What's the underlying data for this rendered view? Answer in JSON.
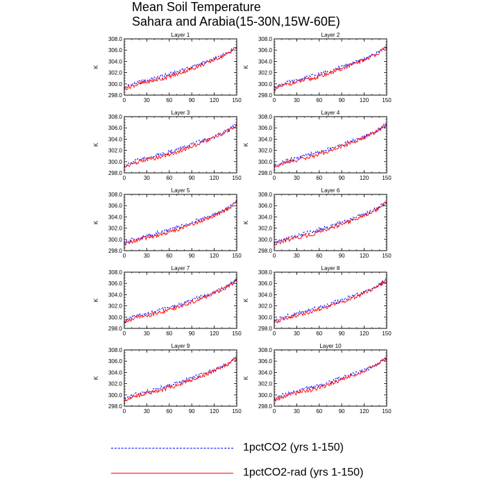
{
  "title": {
    "line1": "Mean Soil Temperature",
    "line2": "Sahara and Arabia(15-30N,15W-60E)"
  },
  "legend": [
    {
      "label": "1pctCO2 (yrs 1-150)",
      "color": "#0000ff",
      "style": "dashed"
    },
    {
      "label": "1pctCO2-rad (yrs 1-150)",
      "color": "#ff0000",
      "style": "solid"
    }
  ],
  "chart_data": {
    "type": "line",
    "layout": "5x2 panel grid",
    "ylabel": "K",
    "xlim": [
      0,
      150
    ],
    "ylim": [
      298.0,
      308.0
    ],
    "xticks": [
      0,
      30,
      60,
      90,
      120,
      150
    ],
    "yticks": [
      "298.0",
      "300.0",
      "302.0",
      "304.0",
      "306.0",
      "308.0"
    ],
    "x": [
      0,
      10,
      20,
      30,
      40,
      50,
      60,
      70,
      80,
      90,
      100,
      110,
      120,
      130,
      140,
      150
    ],
    "panels": [
      {
        "title": "Layer 1",
        "series": [
          {
            "name": "1pctCO2 (yrs 1-150)",
            "values": [
              299.3,
              299.9,
              300.3,
              300.6,
              301.0,
              301.4,
              301.7,
              302.1,
              302.6,
              303.0,
              303.5,
              303.9,
              304.4,
              305.0,
              305.7,
              306.7
            ]
          },
          {
            "name": "1pctCO2-rad (yrs 1-150)",
            "values": [
              299.1,
              299.6,
              300.0,
              300.3,
              300.6,
              300.9,
              301.3,
              301.7,
              302.2,
              302.7,
              303.2,
              303.7,
              304.3,
              304.9,
              305.6,
              306.6
            ]
          }
        ]
      },
      {
        "title": "Layer 2",
        "series": [
          {
            "name": "1pctCO2 (yrs 1-150)",
            "values": [
              299.3,
              299.9,
              300.3,
              300.6,
              301.0,
              301.4,
              301.7,
              302.1,
              302.6,
              303.0,
              303.5,
              303.9,
              304.4,
              305.0,
              305.7,
              306.7
            ]
          },
          {
            "name": "1pctCO2-rad (yrs 1-150)",
            "values": [
              299.1,
              299.6,
              300.0,
              300.3,
              300.6,
              300.9,
              301.3,
              301.7,
              302.2,
              302.7,
              303.2,
              303.7,
              304.3,
              304.9,
              305.6,
              306.6
            ]
          }
        ]
      },
      {
        "title": "Layer 3",
        "series": [
          {
            "name": "1pctCO2 (yrs 1-150)",
            "values": [
              299.3,
              299.9,
              300.3,
              300.6,
              301.0,
              301.4,
              301.7,
              302.1,
              302.6,
              303.0,
              303.5,
              303.9,
              304.4,
              305.0,
              305.7,
              306.7
            ]
          },
          {
            "name": "1pctCO2-rad (yrs 1-150)",
            "values": [
              299.1,
              299.6,
              300.0,
              300.3,
              300.6,
              300.9,
              301.3,
              301.7,
              302.2,
              302.7,
              303.2,
              303.7,
              304.3,
              304.9,
              305.6,
              306.6
            ]
          }
        ]
      },
      {
        "title": "Layer 4",
        "series": [
          {
            "name": "1pctCO2 (yrs 1-150)",
            "values": [
              299.3,
              299.9,
              300.3,
              300.6,
              301.0,
              301.4,
              301.7,
              302.1,
              302.6,
              303.0,
              303.5,
              303.9,
              304.4,
              305.0,
              305.7,
              306.7
            ]
          },
          {
            "name": "1pctCO2-rad (yrs 1-150)",
            "values": [
              299.1,
              299.6,
              300.0,
              300.3,
              300.6,
              300.9,
              301.3,
              301.7,
              302.2,
              302.7,
              303.2,
              303.7,
              304.3,
              304.9,
              305.6,
              306.6
            ]
          }
        ]
      },
      {
        "title": "Layer 5",
        "series": [
          {
            "name": "1pctCO2 (yrs 1-150)",
            "values": [
              299.3,
              299.9,
              300.3,
              300.6,
              301.0,
              301.4,
              301.7,
              302.1,
              302.6,
              303.0,
              303.5,
              303.9,
              304.4,
              305.0,
              305.7,
              306.7
            ]
          },
          {
            "name": "1pctCO2-rad (yrs 1-150)",
            "values": [
              299.1,
              299.6,
              300.0,
              300.3,
              300.6,
              300.9,
              301.3,
              301.7,
              302.2,
              302.7,
              303.2,
              303.7,
              304.3,
              304.9,
              305.6,
              306.6
            ]
          }
        ]
      },
      {
        "title": "Layer 6",
        "series": [
          {
            "name": "1pctCO2 (yrs 1-150)",
            "values": [
              299.3,
              299.9,
              300.3,
              300.6,
              301.0,
              301.4,
              301.7,
              302.1,
              302.6,
              303.0,
              303.5,
              303.9,
              304.4,
              305.0,
              305.7,
              306.7
            ]
          },
          {
            "name": "1pctCO2-rad (yrs 1-150)",
            "values": [
              299.1,
              299.6,
              300.0,
              300.3,
              300.6,
              300.9,
              301.3,
              301.7,
              302.2,
              302.7,
              303.2,
              303.7,
              304.3,
              304.9,
              305.6,
              306.6
            ]
          }
        ]
      },
      {
        "title": "Layer 7",
        "series": [
          {
            "name": "1pctCO2 (yrs 1-150)",
            "values": [
              299.3,
              299.9,
              300.3,
              300.6,
              301.0,
              301.4,
              301.7,
              302.1,
              302.6,
              303.0,
              303.5,
              303.9,
              304.4,
              305.0,
              305.7,
              306.7
            ]
          },
          {
            "name": "1pctCO2-rad (yrs 1-150)",
            "values": [
              299.1,
              299.6,
              300.0,
              300.3,
              300.6,
              300.9,
              301.3,
              301.7,
              302.2,
              302.7,
              303.2,
              303.7,
              304.3,
              304.9,
              305.6,
              306.6
            ]
          }
        ]
      },
      {
        "title": "Layer 8",
        "series": [
          {
            "name": "1pctCO2 (yrs 1-150)",
            "values": [
              299.3,
              299.9,
              300.3,
              300.6,
              301.0,
              301.4,
              301.7,
              302.1,
              302.6,
              303.0,
              303.5,
              303.9,
              304.4,
              305.0,
              305.7,
              306.7
            ]
          },
          {
            "name": "1pctCO2-rad (yrs 1-150)",
            "values": [
              299.1,
              299.6,
              300.0,
              300.3,
              300.6,
              300.9,
              301.3,
              301.7,
              302.2,
              302.7,
              303.2,
              303.7,
              304.3,
              304.9,
              305.6,
              306.6
            ]
          }
        ]
      },
      {
        "title": "Layer 9",
        "series": [
          {
            "name": "1pctCO2 (yrs 1-150)",
            "values": [
              299.3,
              299.9,
              300.3,
              300.6,
              301.0,
              301.4,
              301.7,
              302.1,
              302.6,
              303.0,
              303.5,
              303.9,
              304.4,
              305.0,
              305.7,
              306.7
            ]
          },
          {
            "name": "1pctCO2-rad (yrs 1-150)",
            "values": [
              299.1,
              299.6,
              300.0,
              300.3,
              300.6,
              300.9,
              301.3,
              301.7,
              302.2,
              302.7,
              303.2,
              303.7,
              304.3,
              304.9,
              305.6,
              306.6
            ]
          }
        ]
      },
      {
        "title": "Layer 10",
        "series": [
          {
            "name": "1pctCO2 (yrs 1-150)",
            "values": [
              299.3,
              299.9,
              300.3,
              300.6,
              301.0,
              301.4,
              301.7,
              302.1,
              302.6,
              303.0,
              303.5,
              303.9,
              304.4,
              305.0,
              305.7,
              306.7
            ]
          },
          {
            "name": "1pctCO2-rad (yrs 1-150)",
            "values": [
              299.1,
              299.6,
              300.0,
              300.3,
              300.6,
              300.9,
              301.3,
              301.7,
              302.2,
              302.7,
              303.2,
              303.7,
              304.3,
              304.9,
              305.6,
              306.6
            ]
          }
        ]
      }
    ]
  }
}
